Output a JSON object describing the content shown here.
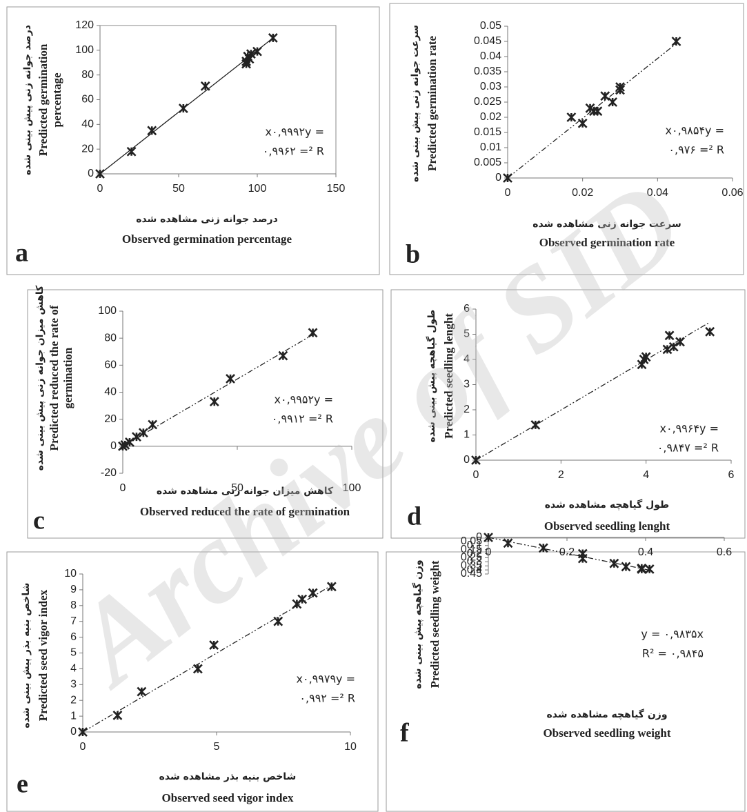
{
  "watermark": "Archive of SID",
  "chart_data": [
    {
      "type": "scatter",
      "panel_label": "a",
      "frame": true,
      "marker_color": "#222",
      "trendline_style": "solid",
      "x": [
        0,
        20,
        33,
        53,
        67,
        93,
        93,
        94,
        96,
        100,
        110,
        95
      ],
      "y": [
        0,
        18,
        35,
        53,
        71,
        91,
        89,
        95,
        97,
        99,
        110,
        93
      ],
      "xlim": [
        0,
        150
      ],
      "ylim": [
        0,
        120
      ],
      "xticks": [
        0,
        50,
        100,
        150
      ],
      "yticks": [
        0,
        20,
        40,
        60,
        80,
        100,
        120
      ],
      "trendline": {
        "x": [
          0,
          110
        ],
        "y": [
          0,
          109.9
        ]
      },
      "annotation": [
        "x۰,۹۹۹۲y =",
        "۰,۹۹۶۲ =² R"
      ],
      "xlabel": [
        "درصد جوانه زنی مشاهده شده",
        "Observed germination percentage"
      ],
      "ylabel": [
        "درصد جوانه زنی پیش بینی شده",
        "Predicted germination",
        "percentage"
      ]
    },
    {
      "type": "scatter",
      "panel_label": "b",
      "frame": false,
      "marker_color": "#222",
      "trendline_style": "dashdot",
      "x": [
        0,
        0.017,
        0.02,
        0.022,
        0.023,
        0.024,
        0.026,
        0.028,
        0.03,
        0.03,
        0.045
      ],
      "y": [
        0,
        0.02,
        0.018,
        0.023,
        0.022,
        0.022,
        0.027,
        0.025,
        0.029,
        0.03,
        0.045
      ],
      "xlim": [
        0,
        0.06
      ],
      "ylim": [
        0,
        0.05
      ],
      "xticks": [
        0,
        0.02,
        0.04,
        0.06
      ],
      "yticks": [
        0,
        0.005,
        0.01,
        0.015,
        0.02,
        0.025,
        0.03,
        0.035,
        0.04,
        0.045,
        0.05
      ],
      "trendline": {
        "x": [
          0,
          0.045
        ],
        "y": [
          0,
          0.0443
        ]
      },
      "annotation": [
        "x۰,۹۸۵۴y =",
        "۰,۹۷۶ =² R"
      ],
      "xlabel": [
        "سرعت جوانه زنی مشاهده شده",
        "Observed germination rate"
      ],
      "ylabel": [
        "سرعت جوانه زنی پیش بینی شده",
        "Predicted germination rate"
      ]
    },
    {
      "type": "scatter",
      "panel_label": "c",
      "frame": false,
      "marker_color": "#222",
      "trendline_style": "dashdot",
      "x": [
        0,
        1,
        3,
        6,
        9,
        13,
        40,
        47,
        70,
        83
      ],
      "y": [
        0,
        1,
        3,
        7,
        10,
        16,
        33,
        50,
        67,
        84
      ],
      "xlim": [
        0,
        100
      ],
      "ylim": [
        -20,
        100
      ],
      "xticks": [
        0,
        50,
        100
      ],
      "yticks": [
        -20,
        0,
        20,
        40,
        60,
        80,
        100
      ],
      "trendline": {
        "x": [
          0,
          83
        ],
        "y": [
          0,
          82.6
        ]
      },
      "annotation": [
        "x۰,۹۹۵۲y =",
        "۰,۹۹۱۲ =² R"
      ],
      "xlabel": [
        "کاهش میزان جوانه زنی مشاهده شده",
        "Observed reduced the rate of germination"
      ],
      "ylabel": [
        "کاهش میزان جوانه زنی پیش بینی شده",
        "Predicted reduced the rate of",
        "germination"
      ]
    },
    {
      "type": "scatter",
      "panel_label": "d",
      "frame": false,
      "marker_color": "#222",
      "trendline_style": "dashdot",
      "x": [
        0,
        1.4,
        3.9,
        3.95,
        4.0,
        4.5,
        4.55,
        4.65,
        4.8,
        5.5
      ],
      "y": [
        0,
        1.4,
        3.8,
        4.0,
        4.1,
        4.4,
        4.95,
        4.5,
        4.7,
        5.1
      ],
      "xlim": [
        0,
        6
      ],
      "ylim": [
        0,
        6
      ],
      "xticks": [
        0,
        2,
        4,
        6
      ],
      "yticks": [
        0,
        1,
        2,
        3,
        4,
        5,
        6
      ],
      "trendline": {
        "x": [
          0,
          5.5
        ],
        "y": [
          0,
          5.48
        ]
      },
      "annotation": [
        "x۰,۹۹۶۴y =",
        "۰,۹۸۴۷ =² R"
      ],
      "xlabel": [
        "طول گیاهچه مشاهده شده",
        "Observed seedling lenght"
      ],
      "ylabel": [
        "طول گیاهچه پیش بینی شده",
        "Predicted seedling lenght"
      ]
    },
    {
      "type": "scatter",
      "panel_label": "e",
      "frame": false,
      "marker_color": "#222",
      "trendline_style": "dashdot",
      "x": [
        0,
        1.3,
        2.2,
        4.3,
        4.9,
        7.3,
        8.0,
        8.2,
        8.6,
        9.3
      ],
      "y": [
        0,
        1.05,
        2.55,
        4.0,
        5.5,
        7.0,
        8.1,
        8.4,
        8.8,
        9.2
      ],
      "xlim": [
        0,
        10
      ],
      "ylim": [
        0,
        10
      ],
      "xticks": [
        0,
        5,
        10
      ],
      "yticks": [
        0,
        1,
        2,
        3,
        4,
        5,
        6,
        7,
        8,
        9,
        10
      ],
      "trendline": {
        "x": [
          0,
          9.3
        ],
        "y": [
          0,
          9.28
        ]
      },
      "annotation": [
        "x۰,۹۹۷۹y =",
        "۰,۹۹۲ =² R"
      ],
      "xlabel": [
        "شاخص بنیه بذر مشاهده شده",
        "Observed seed vigor index"
      ],
      "ylabel": [
        "شاخص بنیه بذر پیش بینی شده",
        "Predicted seed vigor index"
      ]
    },
    {
      "type": "scatter",
      "panel_label": "f",
      "frame": false,
      "marker_color": "#222",
      "trendline_style": "dashdot",
      "x": [
        0,
        0.05,
        0.14,
        0.24,
        0.24,
        0.32,
        0.35,
        0.39,
        0.39,
        0.41
      ],
      "y": [
        0,
        0.07,
        0.13,
        0.26,
        0.2,
        0.32,
        0.36,
        0.38,
        0.39,
        0.39
      ],
      "xlim": [
        0,
        0.6
      ],
      "ylim": [
        0,
        0.45
      ],
      "xticks": [
        0,
        0.2,
        0.4,
        0.6
      ],
      "yticks": [
        0,
        0.05,
        0.1,
        0.15,
        0.2,
        0.25,
        0.3,
        0.35,
        0.4,
        0.45
      ],
      "trendline": {
        "x": [
          0,
          0.41
        ],
        "y": [
          0,
          0.403
        ]
      },
      "annotation": [
        "y = ۰,۹۸۳۵x",
        "R² = ۰,۹۸۴۵"
      ],
      "xlabel": [
        "وزن گیاهچه مشاهده شده",
        "Observed seedling weight"
      ],
      "ylabel": [
        "وزن گیاهچه پیش بینی شده",
        "Predicted seedling weight"
      ]
    }
  ]
}
